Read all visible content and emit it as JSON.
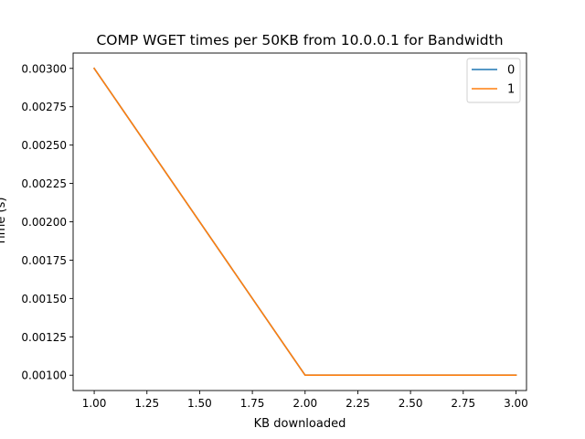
{
  "chart_data": {
    "type": "line",
    "title": "COMP WGET times per 50KB from 10.0.0.1 for Bandwidth",
    "xlabel": "KB downloaded",
    "ylabel": "Time (s)",
    "xlim": [
      0.9,
      3.05
    ],
    "ylim": [
      0.0009,
      0.0031
    ],
    "xticks": [
      1.0,
      1.25,
      1.5,
      1.75,
      2.0,
      2.25,
      2.5,
      2.75,
      3.0
    ],
    "xtick_labels": [
      "1.00",
      "1.25",
      "1.50",
      "1.75",
      "2.00",
      "2.25",
      "2.50",
      "2.75",
      "3.00"
    ],
    "yticks": [
      0.001,
      0.00125,
      0.0015,
      0.00175,
      0.002,
      0.00225,
      0.0025,
      0.00275,
      0.003
    ],
    "ytick_labels": [
      "0.00100",
      "0.00125",
      "0.00150",
      "0.00175",
      "0.00200",
      "0.00225",
      "0.00250",
      "0.00275",
      "0.00300"
    ],
    "grid": false,
    "legend_position": "top-right",
    "series": [
      {
        "name": "0",
        "color": "#1f77b4",
        "x": [
          1,
          2,
          3
        ],
        "y": [
          0.003,
          0.001,
          0.001
        ]
      },
      {
        "name": "1",
        "color": "#ff7f0e",
        "x": [
          1,
          2,
          3
        ],
        "y": [
          0.003,
          0.001,
          0.001
        ]
      }
    ]
  }
}
